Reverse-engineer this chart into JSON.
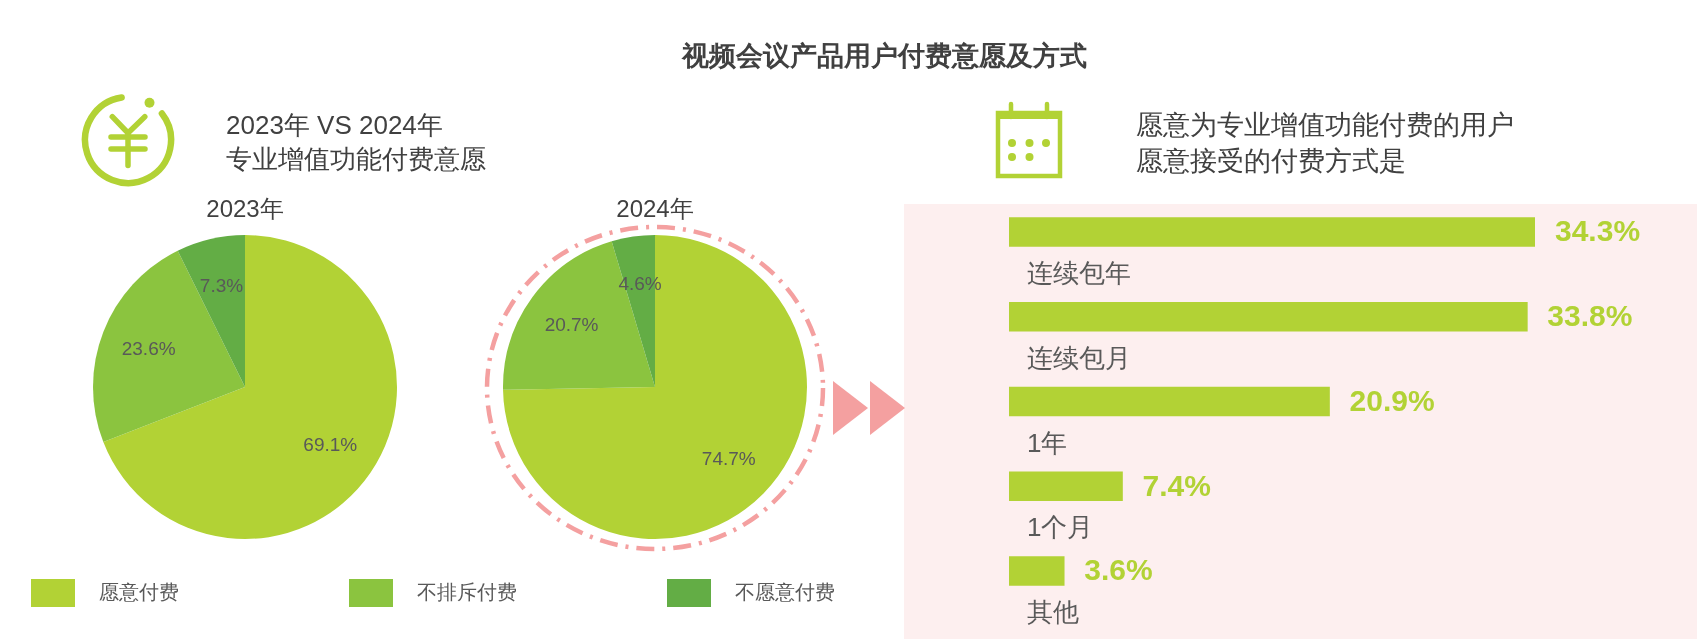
{
  "chart_data": [
    {
      "type": "other",
      "title": "视频会议产品用户付费意愿及方式",
      "subtitle": "2023年 VS 2024年",
      "annotations": [
        "专业增值功能付费意愿"
      ]
    },
    {
      "type": "pie",
      "title": "2023年",
      "categories": [
        "愿意付费",
        "不排斥付费",
        "不愿意付费"
      ],
      "values": [
        69.1,
        23.6,
        7.3
      ],
      "colors": [
        "#b2d235",
        "#8bc43f",
        "#63ad45"
      ],
      "value_labels": [
        "69.1%",
        "23.6%",
        "7.3%"
      ],
      "legend": "bottom"
    },
    {
      "type": "pie",
      "title": "2024年",
      "categories": [
        null,
        null,
        null
      ],
      "values": [
        74.7,
        20.7,
        4.6
      ],
      "colors": [
        "#b2d235",
        "#8bc43f",
        "#63ad45"
      ],
      "value_labels": [
        "74.7%",
        "20.7%",
        "4.6%"
      ]
    },
    {
      "type": "bar",
      "orientation": "horizontal",
      "title": "愿意为专业增值功能付费的用户愿意接受的付费方式是",
      "categories": [
        "连续包年",
        "连续包月",
        "1年",
        "1个月",
        "其他"
      ],
      "values": [
        34.3,
        33.8,
        20.9,
        7.4,
        3.6
      ],
      "color": "#b2d235",
      "value_labels": [
        "34.3%",
        "33.8%",
        "20.9%",
        "7.4%",
        "3.6%"
      ],
      "tick_labels": "y"
    }
  ]
}
